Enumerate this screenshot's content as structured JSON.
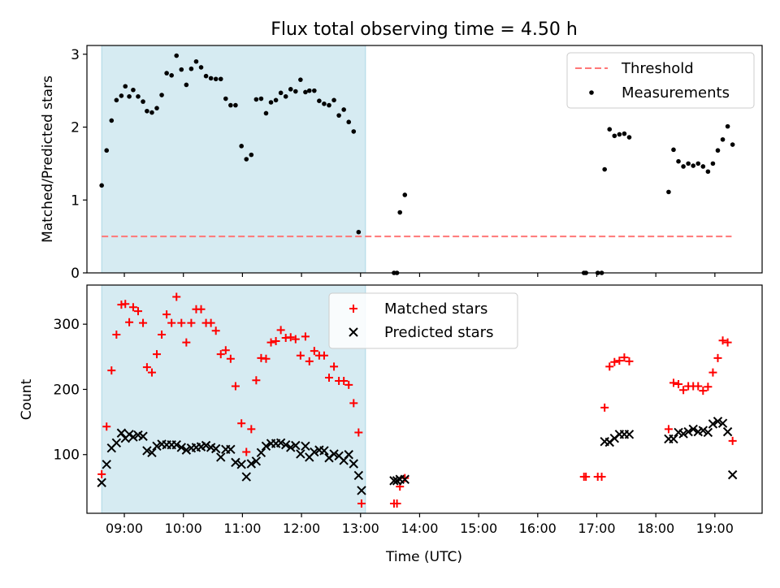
{
  "title": "Flux total observing time = 4.50 h",
  "shaded_region": {
    "start": "08:37",
    "end": "13:05",
    "color": "#add8e6"
  },
  "x_axis": {
    "label": "Time (UTC)",
    "range": [
      "08:22",
      "19:48"
    ],
    "ticks": [
      "09:00",
      "10:00",
      "11:00",
      "12:00",
      "13:00",
      "14:00",
      "15:00",
      "16:00",
      "17:00",
      "18:00",
      "19:00"
    ]
  },
  "chart_data": [
    {
      "type": "scatter",
      "ylabel": "Matched/Predicted stars",
      "ylim": [
        0,
        3.12
      ],
      "yticks": [
        0,
        1,
        2,
        3
      ],
      "legend_position": "top-right",
      "threshold": {
        "name": "Threshold",
        "value": 0.5,
        "x_range": [
          "08:37",
          "19:17"
        ],
        "color": "#ff7777"
      },
      "series": [
        {
          "name": "Measurements",
          "color": "#000000",
          "points": [
            [
              "08:37",
              1.2
            ],
            [
              "08:42",
              1.68
            ],
            [
              "08:47",
              2.09
            ],
            [
              "08:52",
              2.37
            ],
            [
              "08:57",
              2.43
            ],
            [
              "09:01",
              2.56
            ],
            [
              "09:05",
              2.42
            ],
            [
              "09:09",
              2.51
            ],
            [
              "09:14",
              2.42
            ],
            [
              "09:19",
              2.35
            ],
            [
              "09:23",
              2.22
            ],
            [
              "09:28",
              2.2
            ],
            [
              "09:33",
              2.26
            ],
            [
              "09:38",
              2.44
            ],
            [
              "09:43",
              2.74
            ],
            [
              "09:48",
              2.71
            ],
            [
              "09:53",
              2.98
            ],
            [
              "09:58",
              2.79
            ],
            [
              "10:03",
              2.58
            ],
            [
              "10:08",
              2.8
            ],
            [
              "10:13",
              2.9
            ],
            [
              "10:18",
              2.82
            ],
            [
              "10:23",
              2.7
            ],
            [
              "10:28",
              2.67
            ],
            [
              "10:33",
              2.66
            ],
            [
              "10:38",
              2.66
            ],
            [
              "10:43",
              2.39
            ],
            [
              "10:48",
              2.3
            ],
            [
              "10:53",
              2.3
            ],
            [
              "10:59",
              1.74
            ],
            [
              "11:04",
              1.56
            ],
            [
              "11:09",
              1.62
            ],
            [
              "11:14",
              2.38
            ],
            [
              "11:19",
              2.39
            ],
            [
              "11:24",
              2.19
            ],
            [
              "11:29",
              2.34
            ],
            [
              "11:34",
              2.37
            ],
            [
              "11:39",
              2.47
            ],
            [
              "11:44",
              2.42
            ],
            [
              "11:49",
              2.52
            ],
            [
              "11:54",
              2.49
            ],
            [
              "11:59",
              2.65
            ],
            [
              "12:04",
              2.48
            ],
            [
              "12:08",
              2.5
            ],
            [
              "12:13",
              2.5
            ],
            [
              "12:18",
              2.36
            ],
            [
              "12:23",
              2.32
            ],
            [
              "12:28",
              2.3
            ],
            [
              "12:33",
              2.37
            ],
            [
              "12:38",
              2.16
            ],
            [
              "12:43",
              2.24
            ],
            [
              "12:48",
              2.07
            ],
            [
              "12:53",
              1.94
            ],
            [
              "12:58",
              0.56
            ],
            [
              "13:34",
              0.0
            ],
            [
              "13:37",
              0.0
            ],
            [
              "13:40",
              0.83
            ],
            [
              "13:45",
              1.07
            ],
            [
              "16:47",
              0.0
            ],
            [
              "16:49",
              0.0
            ],
            [
              "17:01",
              0.0
            ],
            [
              "17:05",
              0.0
            ],
            [
              "17:08",
              1.42
            ],
            [
              "17:13",
              1.97
            ],
            [
              "17:18",
              1.88
            ],
            [
              "17:23",
              1.9
            ],
            [
              "17:28",
              1.91
            ],
            [
              "17:33",
              1.86
            ],
            [
              "18:13",
              1.11
            ],
            [
              "18:18",
              1.69
            ],
            [
              "18:23",
              1.53
            ],
            [
              "18:28",
              1.46
            ],
            [
              "18:33",
              1.5
            ],
            [
              "18:38",
              1.47
            ],
            [
              "18:43",
              1.5
            ],
            [
              "18:48",
              1.46
            ],
            [
              "18:53",
              1.39
            ],
            [
              "18:58",
              1.5
            ],
            [
              "19:03",
              1.68
            ],
            [
              "19:08",
              1.83
            ],
            [
              "19:13",
              2.01
            ],
            [
              "19:18",
              1.76
            ]
          ]
        }
      ]
    },
    {
      "type": "scatter",
      "ylabel": "Count",
      "ylim": [
        10,
        360
      ],
      "yticks": [
        100,
        200,
        300
      ],
      "legend_position": "top-center",
      "series": [
        {
          "name": "Matched stars",
          "color": "#ff0000",
          "marker": "+",
          "points": [
            [
              "08:37",
              70
            ],
            [
              "08:42",
              143
            ],
            [
              "08:47",
              229
            ],
            [
              "08:52",
              284
            ],
            [
              "08:57",
              330
            ],
            [
              "09:01",
              331
            ],
            [
              "09:05",
              303
            ],
            [
              "09:09",
              326
            ],
            [
              "09:14",
              320
            ],
            [
              "09:19",
              302
            ],
            [
              "09:23",
              234
            ],
            [
              "09:28",
              226
            ],
            [
              "09:33",
              254
            ],
            [
              "09:38",
              284
            ],
            [
              "09:43",
              315
            ],
            [
              "09:48",
              302
            ],
            [
              "09:53",
              342
            ],
            [
              "09:58",
              302
            ],
            [
              "10:03",
              272
            ],
            [
              "10:08",
              302
            ],
            [
              "10:13",
              323
            ],
            [
              "10:18",
              323
            ],
            [
              "10:23",
              302
            ],
            [
              "10:28",
              302
            ],
            [
              "10:33",
              290
            ],
            [
              "10:38",
              254
            ],
            [
              "10:43",
              260
            ],
            [
              "10:48",
              247
            ],
            [
              "10:53",
              205
            ],
            [
              "10:59",
              148
            ],
            [
              "11:04",
              104
            ],
            [
              "11:09",
              139
            ],
            [
              "11:14",
              214
            ],
            [
              "11:19",
              248
            ],
            [
              "11:24",
              247
            ],
            [
              "11:29",
              272
            ],
            [
              "11:34",
              274
            ],
            [
              "11:39",
              291
            ],
            [
              "11:44",
              279
            ],
            [
              "11:49",
              280
            ],
            [
              "11:54",
              277
            ],
            [
              "11:59",
              252
            ],
            [
              "12:04",
              281
            ],
            [
              "12:08",
              243
            ],
            [
              "12:13",
              259
            ],
            [
              "12:18",
              252
            ],
            [
              "12:23",
              252
            ],
            [
              "12:28",
              218
            ],
            [
              "12:33",
              235
            ],
            [
              "12:38",
              213
            ],
            [
              "12:43",
              213
            ],
            [
              "12:48",
              207
            ],
            [
              "12:53",
              179
            ],
            [
              "12:58",
              134
            ],
            [
              "13:01",
              25
            ],
            [
              "13:34",
              25
            ],
            [
              "13:37",
              25
            ],
            [
              "13:40",
              51
            ],
            [
              "13:45",
              64
            ],
            [
              "16:47",
              66
            ],
            [
              "16:49",
              66
            ],
            [
              "17:01",
              66
            ],
            [
              "17:05",
              66
            ],
            [
              "17:08",
              172
            ],
            [
              "17:13",
              235
            ],
            [
              "17:18",
              242
            ],
            [
              "17:23",
              244
            ],
            [
              "17:28",
              249
            ],
            [
              "17:33",
              243
            ],
            [
              "18:13",
              139
            ],
            [
              "18:18",
              210
            ],
            [
              "18:23",
              208
            ],
            [
              "18:28",
              199
            ],
            [
              "18:33",
              205
            ],
            [
              "18:38",
              205
            ],
            [
              "18:43",
              205
            ],
            [
              "18:48",
              198
            ],
            [
              "18:53",
              204
            ],
            [
              "18:58",
              226
            ],
            [
              "19:03",
              248
            ],
            [
              "19:08",
              275
            ],
            [
              "19:13",
              272
            ],
            [
              "19:18",
              121
            ]
          ]
        },
        {
          "name": "Predicted stars",
          "color": "#000000",
          "marker": "x",
          "points": [
            [
              "08:37",
              57
            ],
            [
              "08:42",
              85
            ],
            [
              "08:47",
              110
            ],
            [
              "08:52",
              118
            ],
            [
              "08:57",
              133
            ],
            [
              "09:01",
              125
            ],
            [
              "09:05",
              131
            ],
            [
              "09:09",
              127
            ],
            [
              "09:14",
              130
            ],
            [
              "09:19",
              128
            ],
            [
              "09:23",
              106
            ],
            [
              "09:28",
              103
            ],
            [
              "09:33",
              113
            ],
            [
              "09:38",
              116
            ],
            [
              "09:43",
              115
            ],
            [
              "09:48",
              115
            ],
            [
              "09:53",
              115
            ],
            [
              "09:58",
              111
            ],
            [
              "10:03",
              107
            ],
            [
              "10:08",
              110
            ],
            [
              "10:13",
              111
            ],
            [
              "10:18",
              112
            ],
            [
              "10:23",
              114
            ],
            [
              "10:28",
              111
            ],
            [
              "10:33",
              109
            ],
            [
              "10:38",
              96
            ],
            [
              "10:43",
              108
            ],
            [
              "10:48",
              108
            ],
            [
              "10:53",
              88
            ],
            [
              "10:59",
              85
            ],
            [
              "11:04",
              66
            ],
            [
              "11:09",
              86
            ],
            [
              "11:14",
              90
            ],
            [
              "11:19",
              103
            ],
            [
              "11:24",
              113
            ],
            [
              "11:29",
              117
            ],
            [
              "11:34",
              117
            ],
            [
              "11:39",
              118
            ],
            [
              "11:44",
              115
            ],
            [
              "11:49",
              111
            ],
            [
              "11:54",
              114
            ],
            [
              "11:59",
              101
            ],
            [
              "12:04",
              113
            ],
            [
              "12:08",
              96
            ],
            [
              "12:13",
              104
            ],
            [
              "12:18",
              107
            ],
            [
              "12:23",
              106
            ],
            [
              "12:28",
              95
            ],
            [
              "12:33",
              101
            ],
            [
              "12:38",
              98
            ],
            [
              "12:43",
              91
            ],
            [
              "12:48",
              100
            ],
            [
              "12:53",
              86
            ],
            [
              "12:58",
              68
            ],
            [
              "13:01",
              45
            ],
            [
              "13:34",
              60
            ],
            [
              "13:37",
              60
            ],
            [
              "13:40",
              62
            ],
            [
              "13:45",
              62
            ],
            [
              "17:08",
              120
            ],
            [
              "17:13",
              119
            ],
            [
              "17:18",
              125
            ],
            [
              "17:23",
              131
            ],
            [
              "17:28",
              131
            ],
            [
              "17:33",
              131
            ],
            [
              "18:13",
              124
            ],
            [
              "18:18",
              124
            ],
            [
              "18:23",
              134
            ],
            [
              "18:28",
              132
            ],
            [
              "18:33",
              135
            ],
            [
              "18:38",
              139
            ],
            [
              "18:43",
              135
            ],
            [
              "18:48",
              137
            ],
            [
              "18:53",
              134
            ],
            [
              "18:58",
              147
            ],
            [
              "19:03",
              151
            ],
            [
              "19:08",
              148
            ],
            [
              "19:13",
              135
            ],
            [
              "19:18",
              69
            ]
          ]
        }
      ]
    }
  ]
}
